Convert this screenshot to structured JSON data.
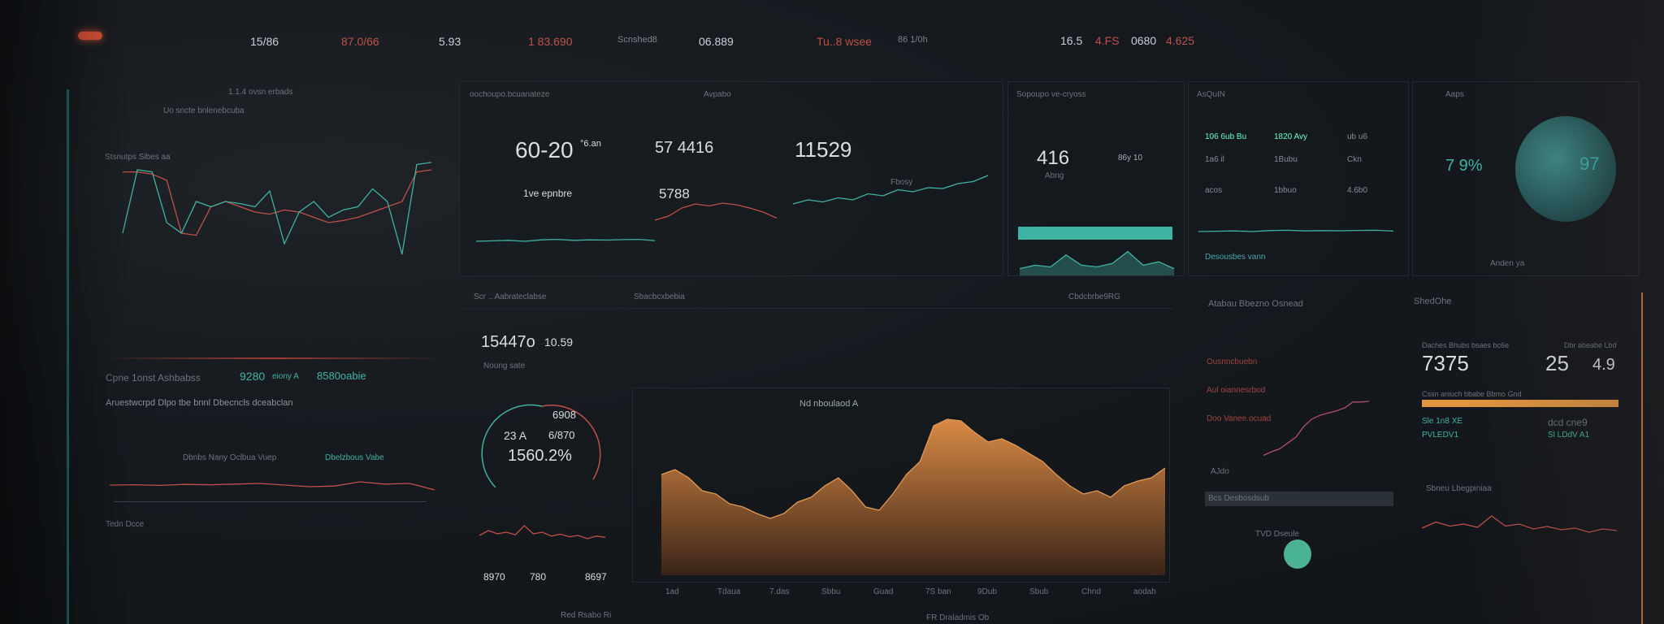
{
  "topbar": {
    "items": [
      {
        "label": "15/86",
        "tone": "light"
      },
      {
        "label": "87.0/66",
        "tone": "red"
      },
      {
        "label": "5.93",
        "tone": "light"
      },
      {
        "label": "1 83.690",
        "tone": "red"
      },
      {
        "label": "Scnshed8",
        "tone": "dim"
      },
      {
        "label": "06.889",
        "tone": "light"
      },
      {
        "label": "Tu..8 wsee",
        "tone": "red"
      },
      {
        "label": "86 1/0h",
        "tone": "dim"
      }
    ],
    "right_items": [
      {
        "label": "16.5",
        "tone": "light"
      },
      {
        "label": "4.FS",
        "tone": "red"
      },
      {
        "label": "0680",
        "tone": "light"
      },
      {
        "label": "4.625",
        "tone": "red"
      }
    ]
  },
  "panels": {
    "left_chart": {
      "title": "1.1.4 ovsn erbads",
      "subtitle": "Uo sncte bnlenebcuba",
      "legend": "Stsnutps Sibes aa"
    },
    "kpi_row": {
      "header": "oochoupo.bcuanateze",
      "header_right": "Avpabo",
      "kpi1": "60-20",
      "kpi1_unit": "°6.an",
      "kpi1_sub": "1ve epnbre",
      "kpi2": "57 4416",
      "kpi2_sub": "5788",
      "kpi3": "11529",
      "kpi3_tag": "Fbosy"
    },
    "mid_kpi": {
      "header": "Sopoupo ve-cryoss",
      "value": "416",
      "value_sub": "Abng",
      "side": "86y 10"
    },
    "list_panel": {
      "header": "AsQuIN",
      "rows": [
        [
          "106 6ub Bu",
          "1820 Avy",
          "ub u6"
        ],
        [
          "1a6 il",
          "1Bubu",
          "Ckn"
        ],
        [
          "acos",
          "1bbuo",
          "4.6b0"
        ]
      ],
      "legend": "Desousbes vann"
    },
    "gauge_panel": {
      "header": "Aaps",
      "value": "7 9%",
      "circle_value": "97",
      "footer": "Anden ya"
    },
    "center_left": {
      "value": "15447o",
      "unit": "10.59",
      "sub": "Noung sate",
      "gauge_top": "6908",
      "gauge_left": "23 A",
      "gauge_right": "6/870",
      "gauge_main": "1560.2%",
      "bottom": [
        "8970",
        "780",
        "8697"
      ],
      "footer": "Red Rsabo Ri"
    },
    "area_chart": {
      "header": "Scr .. Aabrateclabse",
      "header_mid": "Sbacbcxbebia",
      "header_right": "Cbdcbrbe9RG",
      "title": "Nd nboulaod A",
      "x_labels": [
        "1ad",
        "Tdaua",
        "7.das",
        "Sbbu",
        "Guad",
        "7S ban",
        "9Dub",
        "Sbub",
        "Chnd",
        "aodah"
      ],
      "footer": "FR Draladmis Ob"
    },
    "left_mid": {
      "title": "Cpne 1onst Ashbabss",
      "teal_value": "9280",
      "teal_sub": "eiony A",
      "teal_value2": "8580oabie",
      "desc": "Aruestwcrpd Dlpo tbe bnnl Dbecncls dceabclan",
      "legend": "Dbnbs Nany Oclbua Vuep",
      "legend2": "Dbelzbous Vabe",
      "section2": "Tedn Dcce"
    },
    "right_line": {
      "title": "Atabau Bbezno Osnead",
      "labels": [
        "Ousnncbuebn",
        "Aul oiannesrbod",
        "Doo Vanee.ocuad"
      ],
      "section": "AJdo",
      "bar_label": "Bcs Desbosdsub",
      "dot_label": "TVD Dseule"
    },
    "right_stats": {
      "header": "ShedOhe",
      "label1": "Daches Bhubs bsaes bc6e",
      "big1": "7375",
      "label2": "Dbr abeabe Lbd",
      "big2": "25",
      "big3": "4.9",
      "bar_label": "Cssn aniuch bbabe Bbmo Gnd",
      "bar_progress": 1.0,
      "stat_a": "Sle 1n8 XE",
      "stat_b": "dcd cne9",
      "stat_c": "PVLEDV1",
      "stat_d": "Sl LDdV A1",
      "section": "Sbneu Lbegpiniaa"
    }
  },
  "colors": {
    "teal": "#3fb3a3",
    "red": "#c0504a",
    "orange": "#d98a45",
    "bg": "#14181d"
  },
  "charts": {
    "left_teal": [
      30,
      90,
      88,
      40,
      30,
      60,
      55,
      60,
      58,
      55,
      70,
      20,
      50,
      60,
      45,
      52,
      55,
      72,
      60,
      10,
      95,
      97
    ],
    "left_red": [
      88,
      88,
      86,
      80,
      30,
      28,
      55,
      60,
      55,
      50,
      48,
      52,
      50,
      45,
      40,
      42,
      45,
      50,
      55,
      60,
      88,
      90
    ],
    "kpi_spark1": [
      30,
      32,
      34,
      30,
      36,
      38,
      34,
      36,
      35,
      37,
      38,
      33
    ],
    "kpi_spark2": [
      20,
      30,
      50,
      60,
      55,
      62,
      58,
      50,
      40,
      25
    ],
    "kpi_spark3": [
      20,
      30,
      25,
      35,
      30,
      45,
      40,
      55,
      50,
      60,
      58,
      70,
      75,
      90
    ],
    "area_main": [
      62,
      65,
      60,
      52,
      50,
      44,
      42,
      38,
      35,
      38,
      45,
      48,
      55,
      60,
      52,
      42,
      40,
      50,
      62,
      70,
      92,
      96,
      95,
      88,
      82,
      84,
      80,
      75,
      70,
      62,
      55,
      50,
      52,
      48,
      55,
      58,
      60,
      66
    ],
    "right_line": [
      5,
      10,
      14,
      22,
      30,
      45,
      55,
      60,
      63,
      66,
      70,
      78,
      78,
      79
    ],
    "right_small": [
      40,
      55,
      45,
      50,
      42,
      70,
      45,
      50,
      38,
      44,
      36,
      40,
      30,
      38,
      34
    ],
    "left_mid_red": [
      45,
      46,
      44,
      47,
      46,
      48,
      50,
      45,
      40,
      42,
      55,
      48,
      50,
      30
    ]
  }
}
